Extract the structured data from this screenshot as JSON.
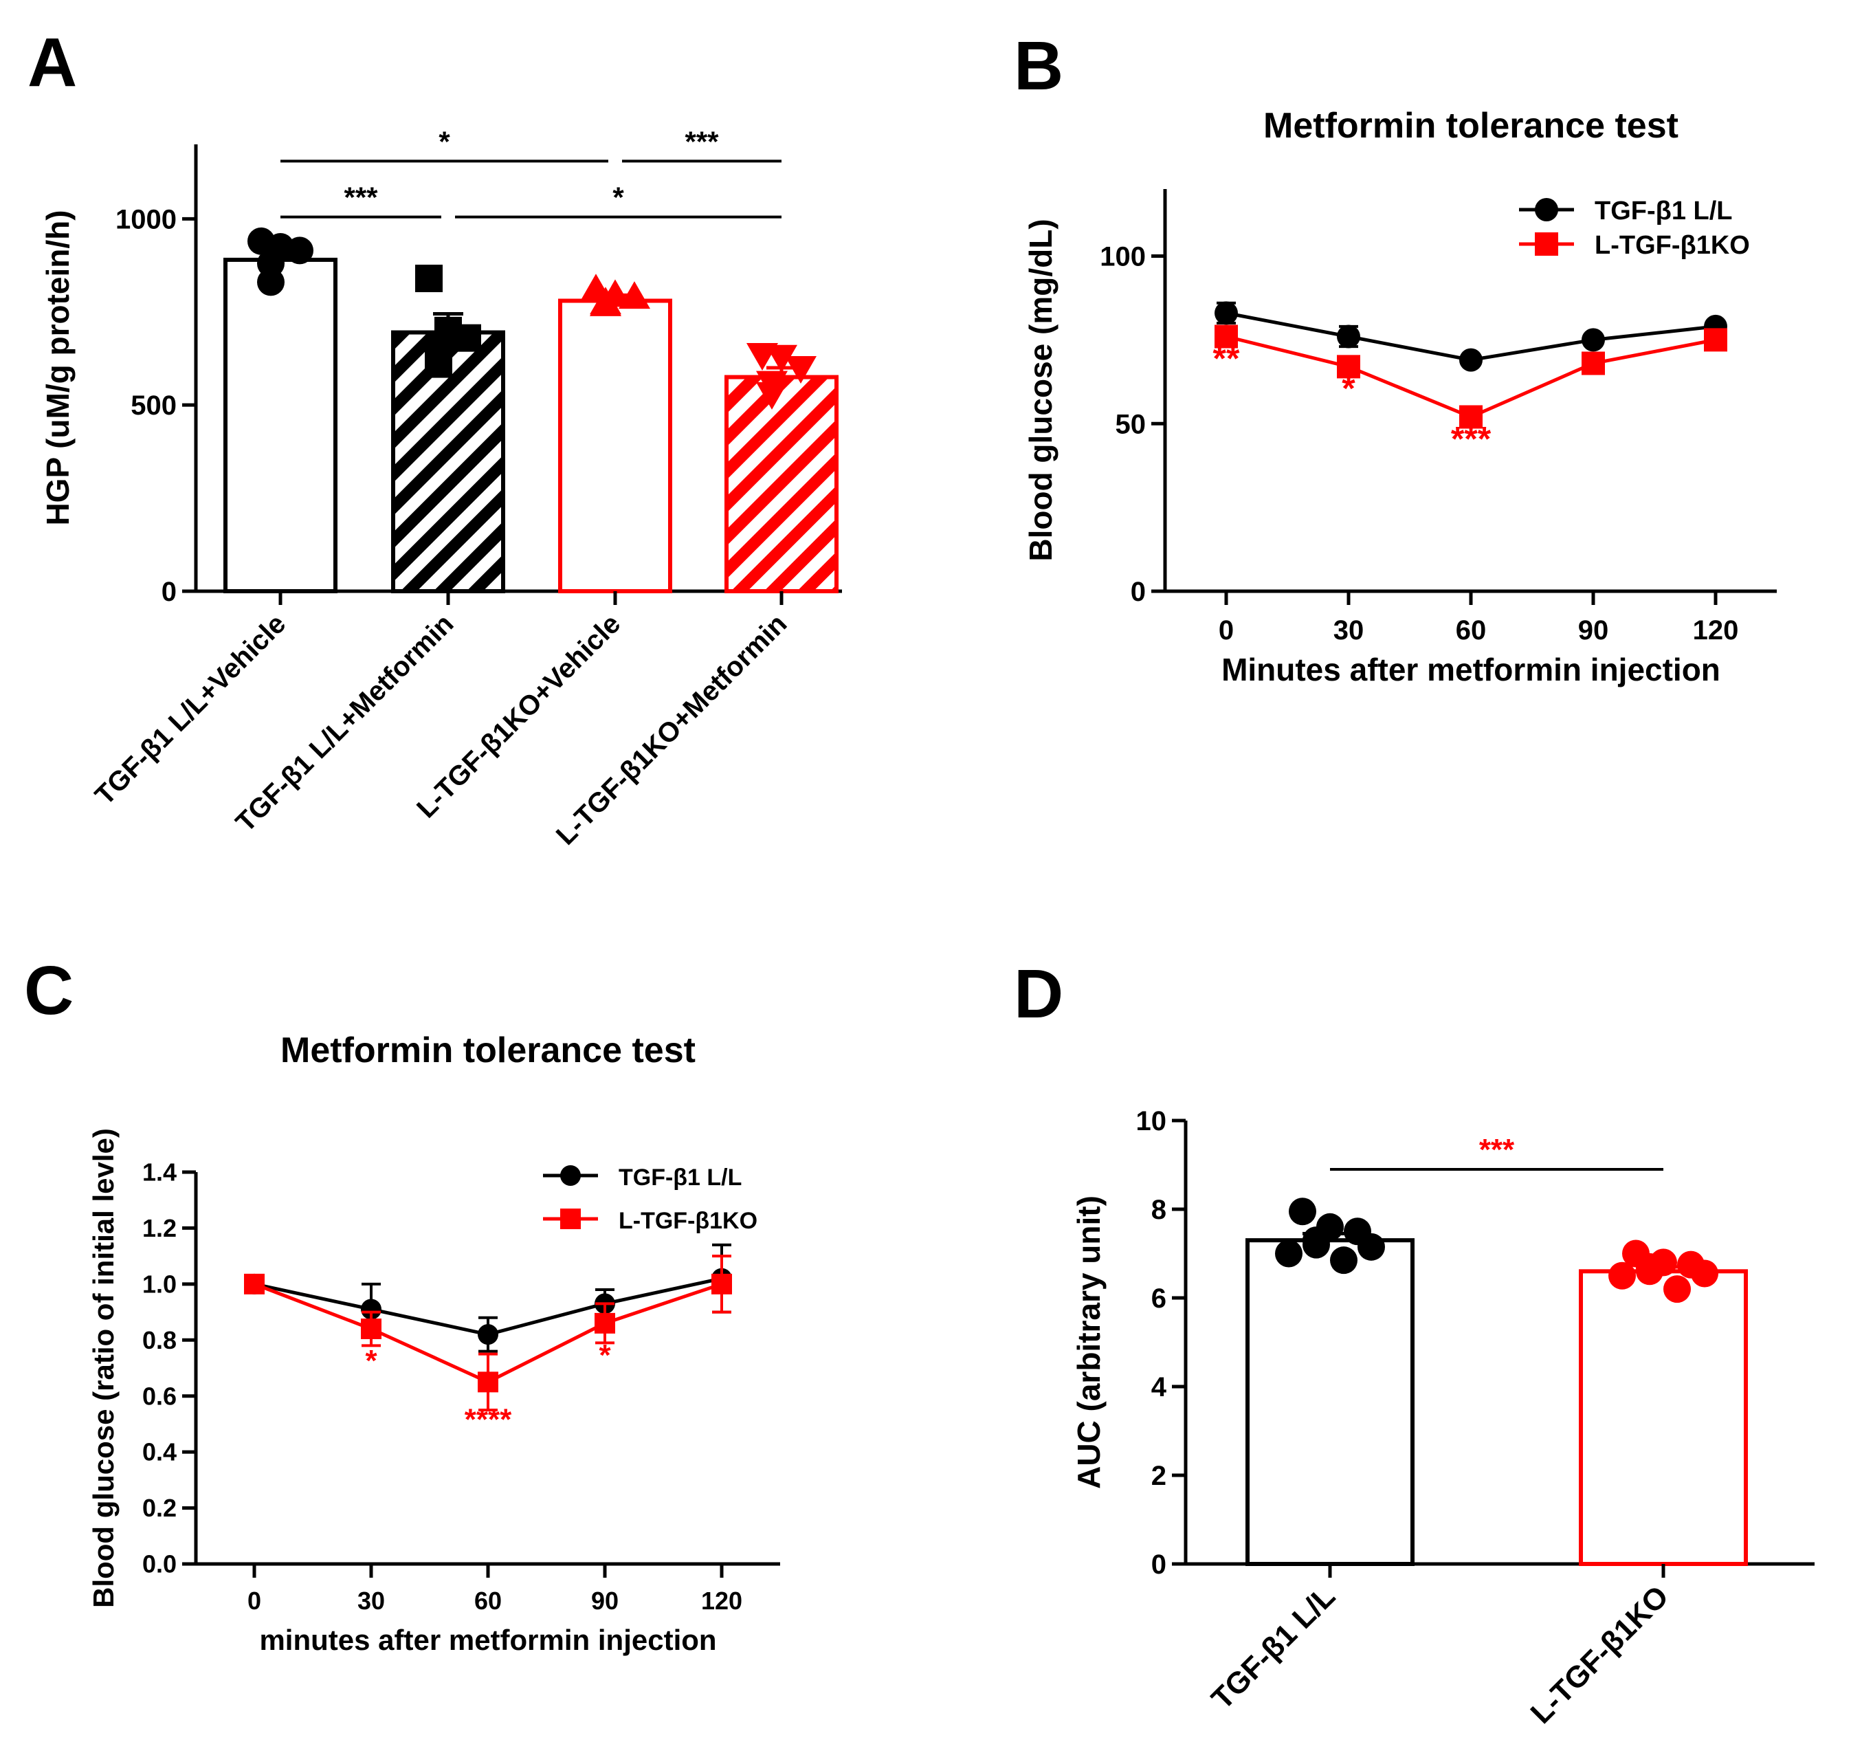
{
  "colors": {
    "black": "#000000",
    "red": "#ff0000"
  },
  "panels": {
    "a": "A",
    "b": "B",
    "c": "C",
    "d": "D"
  },
  "chart_data": [
    {
      "panel": "A",
      "type": "bar",
      "title": "",
      "xlabel": "",
      "ylabel": "HGP (uM/g protein/h)",
      "ylim": [
        0,
        1200
      ],
      "yticks": [
        0,
        500,
        1000
      ],
      "categories": [
        "TGF-β1 L/L+Vehicle",
        "TGF-β1 L/L+Metformin",
        "L-TGF-β1KO+Vehicle",
        "L-TGF-β1KO+Metformin"
      ],
      "values": [
        890,
        695,
        780,
        575
      ],
      "errors": [
        25,
        50,
        15,
        25
      ],
      "colors": [
        "#000000",
        "#000000",
        "#ff0000",
        "#ff0000"
      ],
      "hatched": [
        false,
        true,
        false,
        true
      ],
      "markers": [
        "circle",
        "square",
        "triangle-up",
        "triangle-down"
      ],
      "points": [
        [
          940,
          925,
          915,
          880,
          830
        ],
        [
          840,
          700,
          680,
          640,
          610
        ],
        [
          810,
          795,
          790,
          775,
          770
        ],
        [
          635,
          630,
          600,
          560,
          530
        ]
      ],
      "significance": [
        {
          "from": 0,
          "to": 2,
          "label": "*",
          "y": 1155
        },
        {
          "from": 2,
          "to": 3,
          "label": "***",
          "y": 1155
        },
        {
          "from": 0,
          "to": 1,
          "label": "***",
          "y": 1005
        },
        {
          "from": 1,
          "to": 3,
          "label": "*",
          "y": 1005
        }
      ]
    },
    {
      "panel": "B",
      "type": "line",
      "title": "Metformin tolerance test",
      "xlabel": "Minutes after metformin injection",
      "ylabel": "Blood glucose (mg/dL)",
      "x": [
        0,
        30,
        60,
        90,
        120
      ],
      "xlim": [
        -15,
        135
      ],
      "ylim": [
        0,
        120
      ],
      "yticks": [
        0,
        50,
        100
      ],
      "series": [
        {
          "name": "TGF-β1 L/L",
          "color": "#000000",
          "marker": "circle",
          "values": [
            83,
            76,
            69,
            75,
            79
          ],
          "errors": [
            3,
            3,
            1,
            1,
            1
          ]
        },
        {
          "name": "L-TGF-β1KO",
          "color": "#ff0000",
          "marker": "square",
          "values": [
            76,
            67,
            52,
            68,
            75
          ],
          "errors": [
            2,
            2,
            1,
            1,
            1
          ]
        }
      ],
      "annotations": [
        {
          "x": 0,
          "y": 66,
          "text": "**",
          "color": "#ff0000"
        },
        {
          "x": 30,
          "y": 57,
          "text": "*",
          "color": "#ff0000"
        },
        {
          "x": 60,
          "y": 42,
          "text": "***",
          "color": "#ff0000"
        }
      ],
      "legend_position": "top-right"
    },
    {
      "panel": "C",
      "type": "line",
      "title": "Metformin tolerance test",
      "xlabel": "minutes after metformin injection",
      "ylabel": "Blood glucose (ratio of initial levle)",
      "x": [
        0,
        30,
        60,
        90,
        120
      ],
      "xlim": [
        -15,
        135
      ],
      "ylim": [
        0,
        1.4
      ],
      "yticks": [
        0.0,
        0.2,
        0.4,
        0.6,
        0.8,
        1.0,
        1.2,
        1.4
      ],
      "series": [
        {
          "name": "TGF-β1 L/L",
          "color": "#000000",
          "marker": "circle",
          "values": [
            1.0,
            0.91,
            0.82,
            0.93,
            1.02
          ],
          "errors": [
            0.0,
            0.09,
            0.06,
            0.05,
            0.12
          ]
        },
        {
          "name": "L-TGF-β1KO",
          "color": "#ff0000",
          "marker": "square",
          "values": [
            1.0,
            0.84,
            0.65,
            0.86,
            1.0
          ],
          "errors": [
            0.0,
            0.06,
            0.1,
            0.07,
            0.1
          ]
        }
      ],
      "annotations": [
        {
          "x": 30,
          "y": 0.69,
          "text": "*",
          "color": "#ff0000"
        },
        {
          "x": 60,
          "y": 0.48,
          "text": "****",
          "color": "#ff0000"
        },
        {
          "x": 90,
          "y": 0.71,
          "text": "*",
          "color": "#ff0000"
        }
      ],
      "legend_position": "top-right"
    },
    {
      "panel": "D",
      "type": "bar",
      "title": "",
      "xlabel": "",
      "ylabel": "AUC (arbitrary unit)",
      "ylim": [
        0,
        10
      ],
      "yticks": [
        0,
        2,
        4,
        6,
        8,
        10
      ],
      "categories": [
        "TGF-β1 L/L",
        "L-TGF-β1KO"
      ],
      "values": [
        7.3,
        6.6
      ],
      "errors": [
        0.15,
        0.1
      ],
      "colors": [
        "#000000",
        "#ff0000"
      ],
      "hatched": [
        false,
        false
      ],
      "markers": [
        "circle",
        "circle"
      ],
      "points": [
        [
          7.95,
          7.6,
          7.5,
          7.3,
          7.2,
          7.15,
          7.0,
          6.85
        ],
        [
          7.0,
          6.8,
          6.75,
          6.7,
          6.6,
          6.55,
          6.5,
          6.2
        ]
      ],
      "significance": [
        {
          "from": 0,
          "to": 1,
          "label": "***",
          "y": 8.9,
          "color": "#ff0000"
        }
      ]
    }
  ]
}
